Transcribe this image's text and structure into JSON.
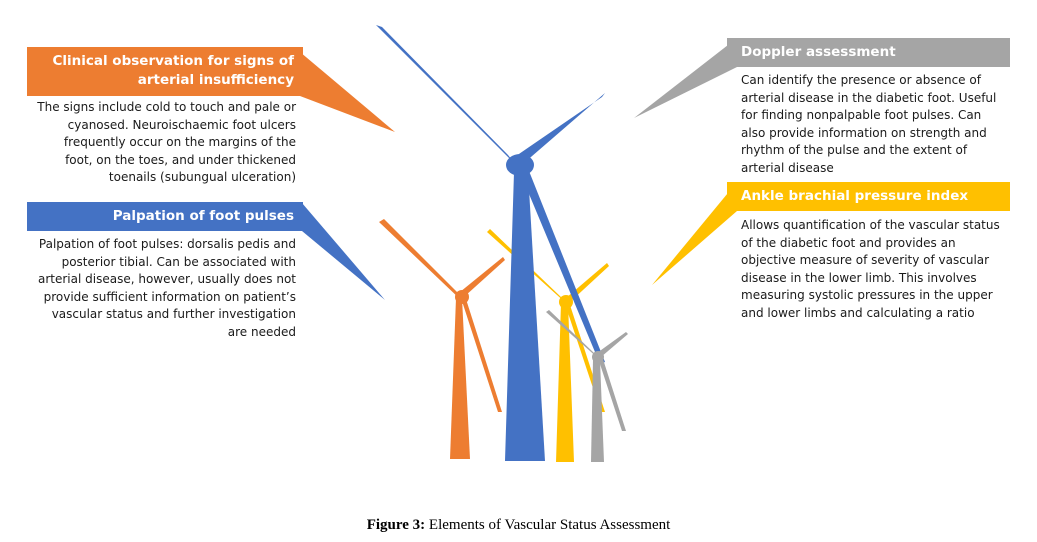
{
  "colors": {
    "orange": "#ED7D31",
    "blue": "#4472C4",
    "gray": "#A5A5A5",
    "yellow": "#FFC000"
  },
  "sections": {
    "clinical": {
      "title_line1": "Clinical observation for signs of",
      "title_line2": "arterial insufficiency",
      "text": "The signs include cold to touch and pale or cyanosed. Neuroischaemic foot ulcers frequently occur on the margins of the foot, on the toes, and under thickened toenails (subungual ulceration)"
    },
    "palpation": {
      "title": "Palpation of foot pulses",
      "text": "Palpation of foot pulses: dorsalis pedis and posterior tibial. Can be associated with arterial disease, however, usually does not provide sufficient information on patient’s vascular status and further investigation are needed"
    },
    "doppler": {
      "title": "Doppler assessment",
      "text": "Can identify the presence or absence of arterial disease in the diabetic foot. Useful for finding nonpalpable foot pulses. Can also provide information on strength and rhythm of the pulse and the extent of arterial disease"
    },
    "abpi": {
      "title": "Ankle brachial pressure index",
      "text": "Allows quantification of the vascular status of the diabetic foot and provides an objective measure of severity of vascular disease in the lower limb. This involves measuring systolic pressures in the upper and lower limbs and calculating a ratio"
    }
  },
  "caption": {
    "label": "Figure 3:",
    "text": " Elements of Vascular Status Assessment"
  }
}
